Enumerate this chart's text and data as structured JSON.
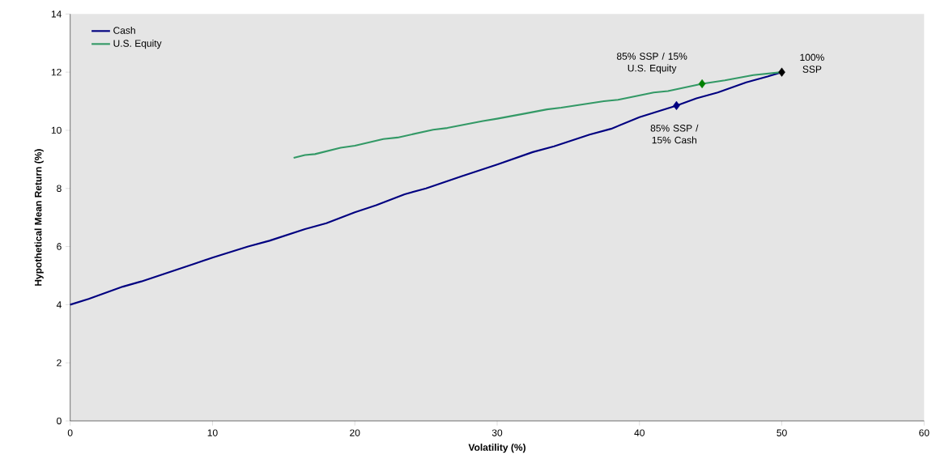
{
  "chart_data": {
    "type": "line",
    "xlabel": "Volatility (%)",
    "ylabel": "Hypothetical Mean Return (%)",
    "xlim": [
      0,
      60
    ],
    "xticks": [
      0,
      10,
      20,
      30,
      40,
      50,
      60
    ],
    "ylim": [
      0,
      14
    ],
    "yticks": [
      0,
      2,
      4,
      6,
      8,
      10,
      12,
      14
    ],
    "legend": "top left",
    "marker": "none",
    "line_style": "solid",
    "series": [
      {
        "name": "Cash",
        "color": "#000080",
        "x": [
          0,
          1.3,
          3.7,
          5,
          8.7,
          10,
          12.5,
          14,
          16.5,
          18,
          20,
          21.5,
          23.5,
          25,
          27.5,
          30,
          32.5,
          34,
          36.5,
          38,
          40,
          41.5,
          42.6,
          44,
          45.5,
          47.5,
          49,
          50
        ],
        "values": [
          4.0,
          4.2,
          4.62,
          4.8,
          5.4,
          5.62,
          6.0,
          6.2,
          6.6,
          6.8,
          7.18,
          7.42,
          7.8,
          8.0,
          8.42,
          8.82,
          9.25,
          9.45,
          9.85,
          10.05,
          10.45,
          10.68,
          10.85,
          11.1,
          11.3,
          11.65,
          11.85,
          12.0
        ]
      },
      {
        "name": "U.S. Equity",
        "color": "#339966",
        "x": [
          15.7,
          16.5,
          17.2,
          19,
          20,
          22,
          23,
          25.5,
          26.5,
          29,
          30,
          32,
          33.5,
          34.5,
          37.5,
          38.5,
          41,
          42,
          44.4,
          46,
          48,
          50
        ],
        "values": [
          9.05,
          9.15,
          9.18,
          9.4,
          9.47,
          9.7,
          9.75,
          10.02,
          10.08,
          10.32,
          10.4,
          10.58,
          10.72,
          10.78,
          11.0,
          11.05,
          11.3,
          11.35,
          11.6,
          11.72,
          11.9,
          12.0
        ]
      },
      {
        "type": "scatter",
        "marker": "diamond",
        "color": "#000080",
        "x": [
          42.6
        ],
        "values": [
          10.85
        ]
      },
      {
        "type": "scatter",
        "marker": "diamond",
        "color": "#008000",
        "x": [
          44.4
        ],
        "values": [
          11.6
        ]
      },
      {
        "type": "scatter",
        "marker": "diamond",
        "color": "#000000",
        "x": [
          50
        ],
        "values": [
          12.0
        ]
      }
    ],
    "annotations": [
      {
        "text": "85% SSP / 15% U.S. Equity",
        "x": 44.4,
        "y": 11.6
      },
      {
        "text": "100% SSP",
        "x": 50,
        "y": 12.0
      },
      {
        "text": "85% SSP / 15% Cash",
        "x": 42.6,
        "y": 10.85
      }
    ]
  }
}
